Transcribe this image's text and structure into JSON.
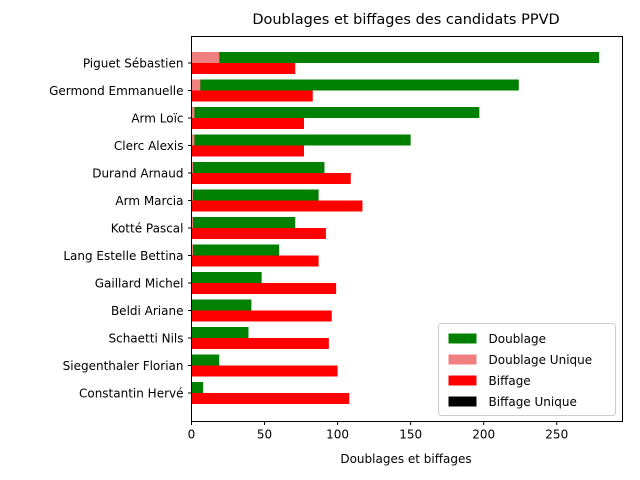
{
  "chart_data": {
    "type": "bar",
    "orientation": "horizontal",
    "title": "Doublages et biffages des candidats PPVD",
    "xlabel": "Doublages et biffages",
    "ylabel": "",
    "xlim": [
      0,
      295
    ],
    "x_ticks": [
      0,
      50,
      100,
      150,
      200,
      250
    ],
    "grid": false,
    "legend_position": "lower-right",
    "categories": [
      "Piguet Sébastien",
      "Germond Emmanuelle",
      "Arm Loïc",
      "Clerc Alexis",
      "Durand Arnaud",
      "Arm Marcia",
      "Kotté Pascal",
      "Lang Estelle Bettina",
      "Gaillard Michel",
      "Beldi Ariane",
      "Schaetti Nils",
      "Siegenthaler Florian",
      "Constantin Hervé"
    ],
    "series": [
      {
        "name": "Doublage",
        "color": "#008000",
        "values": [
          279,
          224,
          197,
          150,
          91,
          87,
          71,
          60,
          48,
          41,
          39,
          19,
          8
        ]
      },
      {
        "name": "Doublage Unique",
        "color": "#f08080",
        "values": [
          19,
          6,
          2,
          2,
          1,
          1,
          1,
          1,
          0,
          0,
          0,
          0,
          0
        ]
      },
      {
        "name": "Biffage",
        "color": "#ff0000",
        "values": [
          71,
          83,
          77,
          77,
          109,
          117,
          92,
          87,
          99,
          96,
          94,
          100,
          108
        ]
      },
      {
        "name": "Biffage Unique",
        "color": "#000000",
        "values": [
          0,
          0,
          0,
          0,
          0,
          0,
          0,
          0,
          0,
          0,
          0,
          0,
          0
        ]
      }
    ]
  }
}
